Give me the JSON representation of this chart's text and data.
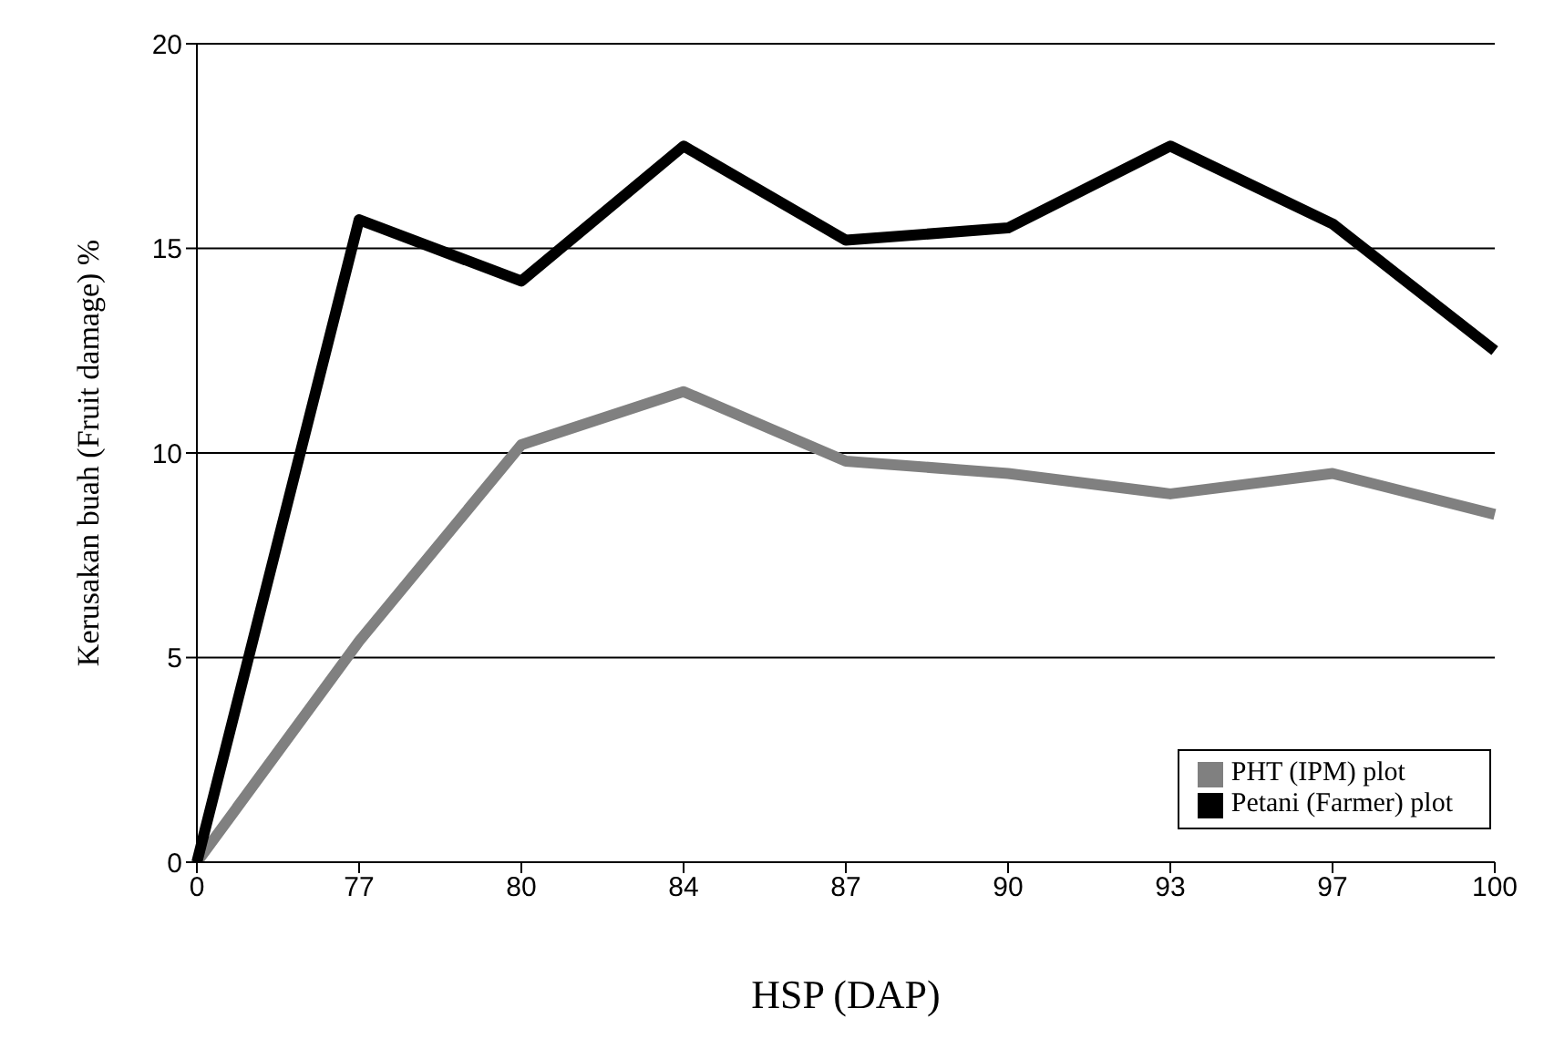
{
  "chart_data": {
    "type": "line",
    "xlabel": "HSP (DAP)",
    "ylabel": "Kerusakan buah (Fruit damage) %",
    "categories": [
      "0",
      "77",
      "80",
      "84",
      "87",
      "90",
      "93",
      "97",
      "100"
    ],
    "series": [
      {
        "name": "PHT (IPM) plot",
        "color": "#808080",
        "values": [
          0,
          5.4,
          10.2,
          11.5,
          9.8,
          9.5,
          9.0,
          9.5,
          8.5
        ]
      },
      {
        "name": "Petani (Farmer) plot",
        "color": "#000000",
        "values": [
          0,
          15.7,
          14.2,
          17.5,
          15.2,
          15.5,
          17.5,
          15.6,
          12.5
        ]
      }
    ],
    "ylim": [
      0,
      20
    ],
    "yticks": [
      0,
      5,
      10,
      15,
      20
    ],
    "grid": "y",
    "legend": "bottom right",
    "marker": "none",
    "line_style": "solid"
  }
}
